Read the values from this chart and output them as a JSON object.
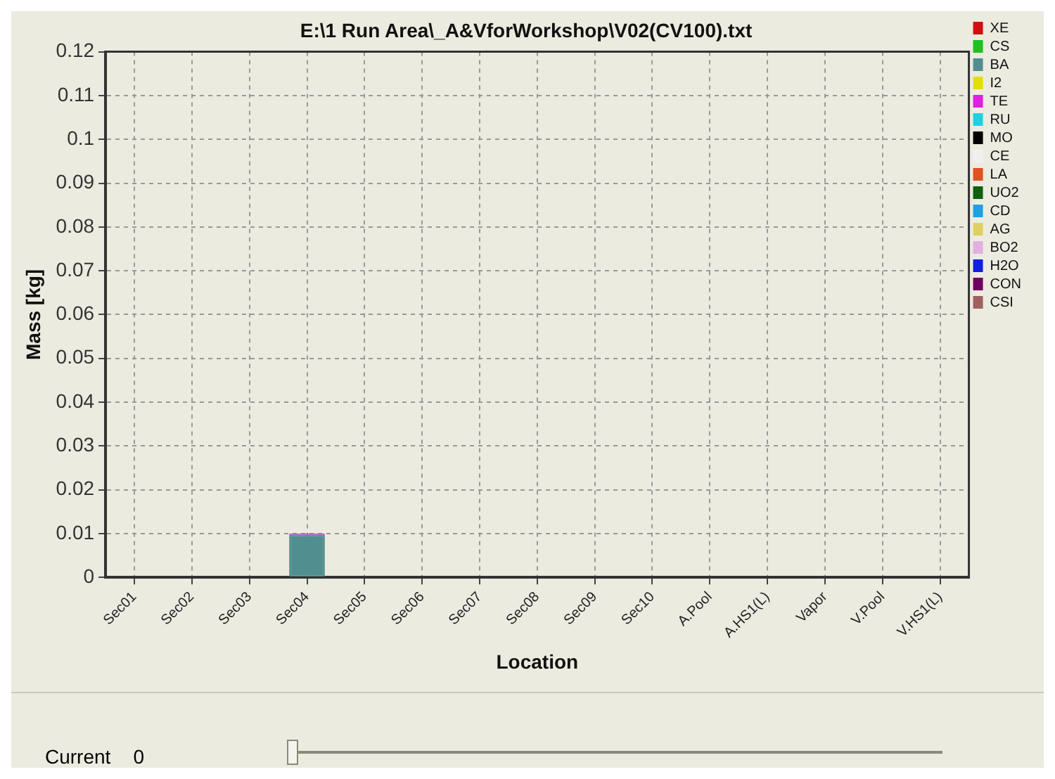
{
  "chart_data": {
    "type": "bar",
    "stacked": true,
    "title": "E:\\1 Run Area\\_A&VforWorkshop\\V02(CV100).txt",
    "xlabel": "Location",
    "ylabel": "Mass [kg]",
    "categories": [
      "Sec01",
      "Sec02",
      "Sec03",
      "Sec04",
      "Sec05",
      "Sec06",
      "Sec07",
      "Sec08",
      "Sec09",
      "Sec10",
      "A.Pool",
      "A.HS1(L)",
      "Vapor",
      "V.Pool",
      "V.HS1(L)"
    ],
    "series": [
      {
        "name": "XE",
        "color": "#d01010",
        "values": [
          0,
          0,
          0,
          0,
          0,
          0,
          0,
          0,
          0,
          0,
          0,
          0,
          0,
          0,
          0
        ]
      },
      {
        "name": "CS",
        "color": "#20c020",
        "values": [
          0,
          0,
          0,
          0,
          0,
          0,
          0,
          0,
          0,
          0,
          0,
          0,
          0,
          0,
          0
        ]
      },
      {
        "name": "BA",
        "color": "#4f8f8f",
        "values": [
          0,
          0,
          0,
          0.0098,
          0,
          0,
          0,
          0,
          0,
          0,
          0,
          0,
          0,
          0,
          0
        ]
      },
      {
        "name": "I2",
        "color": "#e0e000",
        "values": [
          0,
          0,
          0,
          0,
          0,
          0,
          0,
          0,
          0,
          0,
          0,
          0,
          0,
          0,
          0
        ]
      },
      {
        "name": "TE",
        "color": "#e020e0",
        "values": [
          0,
          0,
          0,
          0.0002,
          0,
          0,
          0,
          0,
          0,
          0,
          0,
          0,
          0,
          0,
          0
        ]
      },
      {
        "name": "RU",
        "color": "#20d0e0",
        "values": [
          0,
          0,
          0,
          0,
          0,
          0,
          0,
          0,
          0,
          0,
          0,
          0,
          0,
          0,
          0
        ]
      },
      {
        "name": "MO",
        "color": "#000000",
        "values": [
          0,
          0,
          0,
          0,
          0,
          0,
          0,
          0,
          0,
          0,
          0,
          0,
          0,
          0,
          0
        ]
      },
      {
        "name": "CE",
        "color": "#f0f0f0",
        "values": [
          0,
          0,
          0,
          0,
          0,
          0,
          0,
          0,
          0,
          0,
          0,
          0,
          0,
          0,
          0
        ]
      },
      {
        "name": "LA",
        "color": "#e05020",
        "values": [
          0,
          0,
          0,
          0,
          0,
          0,
          0,
          0,
          0,
          0,
          0,
          0,
          0,
          0,
          0
        ]
      },
      {
        "name": "UO2",
        "color": "#106010",
        "values": [
          0,
          0,
          0,
          0,
          0,
          0,
          0,
          0,
          0,
          0,
          0,
          0,
          0,
          0,
          0
        ]
      },
      {
        "name": "CD",
        "color": "#20a0e0",
        "values": [
          0,
          0,
          0,
          0,
          0,
          0,
          0,
          0,
          0,
          0,
          0,
          0,
          0,
          0,
          0
        ]
      },
      {
        "name": "AG",
        "color": "#e0d060",
        "values": [
          0,
          0,
          0,
          0,
          0,
          0,
          0,
          0,
          0,
          0,
          0,
          0,
          0,
          0,
          0
        ]
      },
      {
        "name": "BO2",
        "color": "#e0b0e0",
        "values": [
          0,
          0,
          0,
          0,
          0,
          0,
          0,
          0,
          0,
          0,
          0,
          0,
          0,
          0,
          0
        ]
      },
      {
        "name": "H2O",
        "color": "#1020e0",
        "values": [
          0,
          0,
          0,
          0,
          0,
          0,
          0,
          0,
          0,
          0,
          0,
          0,
          0,
          0,
          0
        ]
      },
      {
        "name": "CON",
        "color": "#700060",
        "values": [
          0,
          0,
          0,
          0,
          0,
          0,
          0,
          0,
          0,
          0,
          0,
          0,
          0,
          0,
          0
        ]
      },
      {
        "name": "CSI",
        "color": "#a06060",
        "values": [
          0,
          0,
          0,
          0,
          0,
          0,
          0,
          0,
          0,
          0,
          0,
          0,
          0,
          0,
          0
        ]
      }
    ],
    "ylim": [
      0,
      0.12
    ],
    "yticks": [
      0,
      0.01,
      0.02,
      0.03,
      0.04,
      0.05,
      0.06,
      0.07,
      0.08,
      0.09,
      0.1,
      0.11,
      0.12
    ],
    "grid": true,
    "legend": "right",
    "annotations": [
      "Current",
      "0"
    ]
  }
}
